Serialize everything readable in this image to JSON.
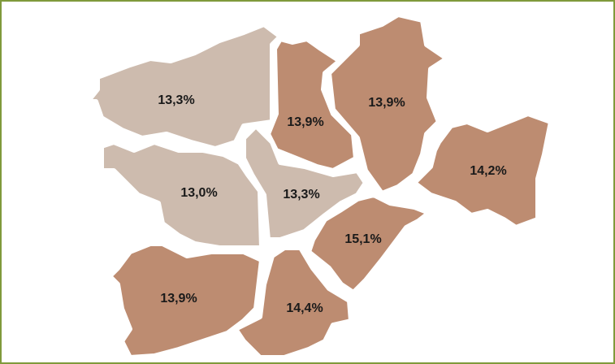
{
  "regions": [
    {
      "label": "13,3%",
      "color": "#cdbbae"
    },
    {
      "label": "13,9%",
      "color": "#bd8c71"
    },
    {
      "label": "13,9%",
      "color": "#bd8c71"
    },
    {
      "label": "14,2%",
      "color": "#bd8c71"
    },
    {
      "label": "13,0%",
      "color": "#cdbbae"
    },
    {
      "label": "13,3%",
      "color": "#cdbbae"
    },
    {
      "label": "15,1%",
      "color": "#bd8c71"
    },
    {
      "label": "13,9%",
      "color": "#bd8c71"
    },
    {
      "label": "14,4%",
      "color": "#bd8c71"
    }
  ]
}
